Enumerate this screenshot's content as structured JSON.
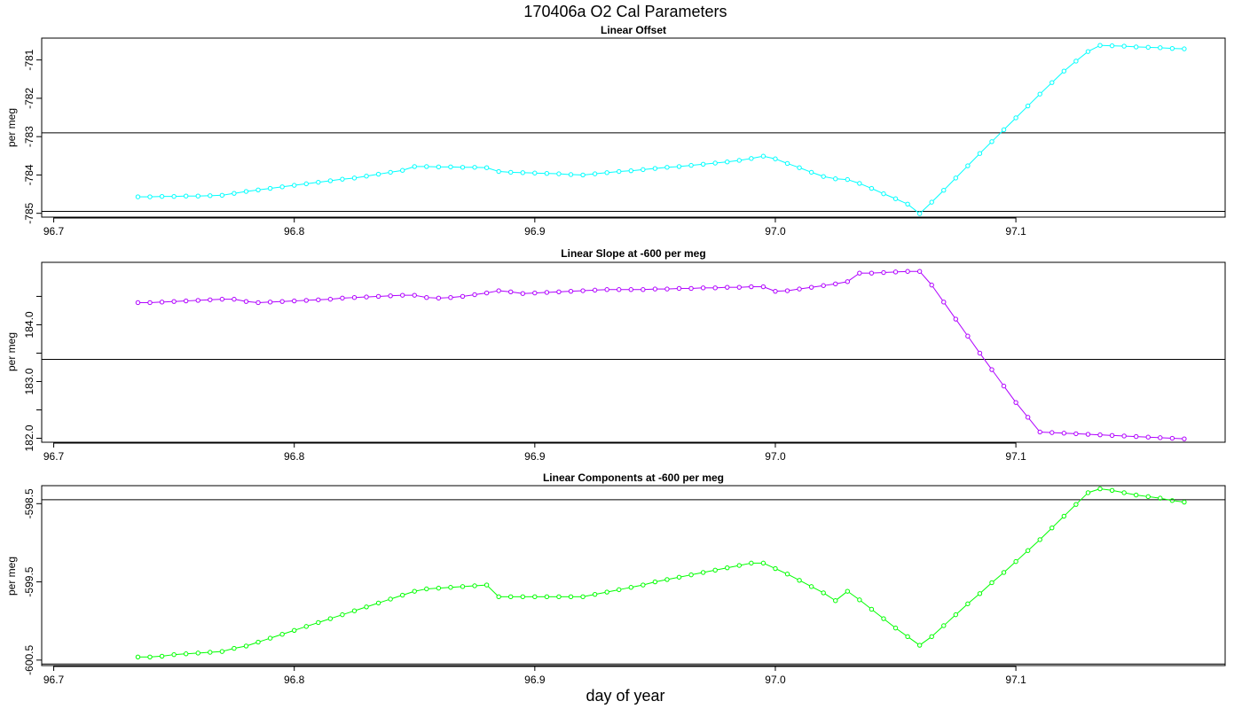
{
  "title": "170406a   O2 Cal Parameters",
  "xlabel": "day of year",
  "x_ticks": [
    "96.7",
    "96.8",
    "96.9",
    "97.0",
    "97.1"
  ],
  "x_tick_values": [
    96.7,
    96.8,
    96.9,
    97.0,
    97.1
  ],
  "xlim": [
    96.695,
    97.187
  ],
  "x": [
    96.735,
    96.74,
    96.745,
    96.75,
    96.755,
    96.76,
    96.765,
    96.77,
    96.775,
    96.78,
    96.785,
    96.79,
    96.795,
    96.8,
    96.805,
    96.81,
    96.815,
    96.82,
    96.825,
    96.83,
    96.835,
    96.84,
    96.845,
    96.85,
    96.855,
    96.86,
    96.865,
    96.87,
    96.875,
    96.88,
    96.885,
    96.89,
    96.895,
    96.9,
    96.905,
    96.91,
    96.915,
    96.92,
    96.925,
    96.93,
    96.935,
    96.94,
    96.945,
    96.95,
    96.955,
    96.96,
    96.965,
    96.97,
    96.975,
    96.98,
    96.985,
    96.99,
    96.995,
    97.0,
    97.005,
    97.01,
    97.015,
    97.02,
    97.025,
    97.03,
    97.035,
    97.04,
    97.045,
    97.05,
    97.055,
    97.06,
    97.065,
    97.07,
    97.075,
    97.08,
    97.085,
    97.09,
    97.095,
    97.1,
    97.105,
    97.11,
    97.115,
    97.12,
    97.125,
    97.13,
    97.135,
    97.14,
    97.145,
    97.15,
    97.155,
    97.16,
    97.165,
    97.17
  ],
  "chart_data": [
    {
      "type": "line",
      "title": "Linear Offset",
      "ylabel": "per meg",
      "ylim": [
        -785.1,
        -780.43
      ],
      "y_ticks": [
        "-785",
        "-784",
        "-783",
        "-782",
        "-781"
      ],
      "y_tick_values": [
        -785,
        -784,
        -783,
        -782,
        -781
      ],
      "hlines": [
        -782.9,
        -784.95
      ],
      "color": "#00ffff",
      "values": [
        -784.57,
        -784.57,
        -784.56,
        -784.56,
        -784.55,
        -784.55,
        -784.54,
        -784.53,
        -784.48,
        -784.43,
        -784.39,
        -784.35,
        -784.31,
        -784.27,
        -784.23,
        -784.19,
        -784.15,
        -784.11,
        -784.08,
        -784.03,
        -783.98,
        -783.93,
        -783.88,
        -783.78,
        -783.78,
        -783.79,
        -783.79,
        -783.8,
        -783.8,
        -783.81,
        -783.91,
        -783.93,
        -783.94,
        -783.95,
        -783.96,
        -783.97,
        -783.99,
        -784.0,
        -783.97,
        -783.94,
        -783.91,
        -783.89,
        -783.86,
        -783.83,
        -783.8,
        -783.78,
        -783.75,
        -783.72,
        -783.69,
        -783.66,
        -783.62,
        -783.57,
        -783.51,
        -783.58,
        -783.7,
        -783.81,
        -783.93,
        -784.04,
        -784.1,
        -784.12,
        -784.22,
        -784.35,
        -784.49,
        -784.62,
        -784.76,
        -785.01,
        -784.71,
        -784.4,
        -784.08,
        -783.76,
        -783.44,
        -783.13,
        -782.82,
        -782.51,
        -782.2,
        -781.89,
        -781.59,
        -781.29,
        -781.03,
        -780.78,
        -780.62,
        -780.63,
        -780.64,
        -780.66,
        -780.67,
        -780.68,
        -780.7,
        -780.71
      ]
    },
    {
      "type": "line",
      "title": "Linear Slope at -600 per meg",
      "ylabel": "per meg",
      "ylim": [
        181.93,
        185.1
      ],
      "y_ticks": [
        "182.0",
        "183.0",
        "184.0"
      ],
      "y_tick_values": [
        182.0,
        183.0,
        184.0
      ],
      "minor_y_ticks": [
        182.5,
        183.5,
        184.5
      ],
      "hlines": [
        183.39
      ],
      "color": "#b000ff",
      "values": [
        184.39,
        184.39,
        184.4,
        184.41,
        184.42,
        184.43,
        184.44,
        184.45,
        184.45,
        184.41,
        184.39,
        184.4,
        184.41,
        184.42,
        184.43,
        184.44,
        184.45,
        184.47,
        184.48,
        184.49,
        184.5,
        184.51,
        184.52,
        184.52,
        184.48,
        184.47,
        184.48,
        184.5,
        184.53,
        184.56,
        184.6,
        184.58,
        184.55,
        184.56,
        184.57,
        184.58,
        184.59,
        184.6,
        184.61,
        184.62,
        184.62,
        184.62,
        184.62,
        184.63,
        184.63,
        184.64,
        184.64,
        184.65,
        184.65,
        184.66,
        184.66,
        184.67,
        184.67,
        184.59,
        184.6,
        184.63,
        184.66,
        184.69,
        184.72,
        184.76,
        184.91,
        184.91,
        184.92,
        184.93,
        184.94,
        184.94,
        184.7,
        184.4,
        184.1,
        183.8,
        183.5,
        183.21,
        182.92,
        182.63,
        182.37,
        182.11,
        182.1,
        182.09,
        182.08,
        182.07,
        182.06,
        182.05,
        182.04,
        182.03,
        182.02,
        182.01,
        182.0,
        181.99
      ]
    },
    {
      "type": "line",
      "title": "Linear Components at -600 per meg",
      "ylabel": "per meg",
      "ylim": [
        -600.57,
        -598.27
      ],
      "y_ticks": [
        "-600.5",
        "-599.5",
        "-598.5"
      ],
      "y_tick_values": [
        -600.5,
        -599.5,
        -598.5
      ],
      "hlines": [
        -598.45,
        -600.55
      ],
      "color": "#00ff00",
      "values": [
        -600.46,
        -600.46,
        -600.45,
        -600.43,
        -600.42,
        -600.41,
        -600.4,
        -600.39,
        -600.35,
        -600.32,
        -600.27,
        -600.22,
        -600.17,
        -600.12,
        -600.07,
        -600.02,
        -599.97,
        -599.92,
        -599.87,
        -599.82,
        -599.77,
        -599.72,
        -599.67,
        -599.62,
        -599.59,
        -599.58,
        -599.57,
        -599.56,
        -599.55,
        -599.54,
        -599.69,
        -599.69,
        -599.69,
        -599.69,
        -599.69,
        -599.69,
        -599.69,
        -599.69,
        -599.66,
        -599.63,
        -599.6,
        -599.57,
        -599.54,
        -599.5,
        -599.47,
        -599.44,
        -599.41,
        -599.38,
        -599.35,
        -599.32,
        -599.29,
        -599.26,
        -599.26,
        -599.33,
        -599.4,
        -599.48,
        -599.56,
        -599.64,
        -599.74,
        -599.62,
        -599.73,
        -599.85,
        -599.97,
        -600.09,
        -600.2,
        -600.31,
        -600.2,
        -600.06,
        -599.92,
        -599.78,
        -599.65,
        -599.51,
        -599.38,
        -599.24,
        -599.1,
        -598.96,
        -598.81,
        -598.66,
        -598.51,
        -598.36,
        -598.31,
        -598.33,
        -598.36,
        -598.39,
        -598.41,
        -598.43,
        -598.46,
        -598.48
      ]
    }
  ]
}
